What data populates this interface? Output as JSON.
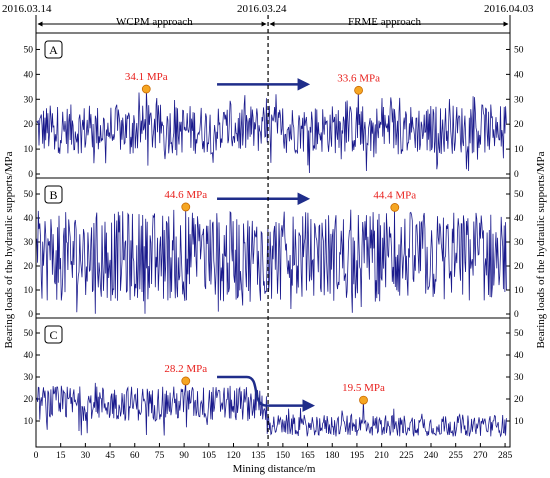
{
  "chart_data": {
    "type": "line",
    "title": "",
    "top_dates": [
      "2016.03.14",
      "2016.03.24",
      "2016.04.03"
    ],
    "approach_labels": [
      "WCPM approach",
      "FRME approach"
    ],
    "xlabel": "Mining distance/m",
    "ylabel": "Bearing loads of the hydraulic supports/MPa",
    "xlim": [
      0,
      288
    ],
    "x_ticks": [
      0,
      15,
      30,
      45,
      60,
      75,
      90,
      105,
      120,
      135,
      150,
      165,
      180,
      195,
      210,
      225,
      240,
      255,
      270,
      285
    ],
    "divider_x": 141,
    "line_color": "#1a1a8c",
    "marker_color": "#f5a623",
    "annotation_color": "#e8201d",
    "arrow_color": "#1f2d8a",
    "panels": [
      {
        "label": "A",
        "ylim": [
          0,
          55
        ],
        "y_ticks": [
          0,
          10,
          20,
          30,
          40,
          50
        ],
        "base": 18,
        "amp": 10,
        "lo": 0,
        "hi": 33,
        "peaks": [
          {
            "x": 67,
            "y": 34.1,
            "label": "34.1 MPa"
          },
          {
            "x": 196,
            "y": 33.6,
            "label": "33.6 MPa"
          }
        ],
        "arrow": {
          "x1": 110,
          "x2": 165,
          "y": 36,
          "shape": "straight"
        }
      },
      {
        "label": "B",
        "ylim": [
          0,
          55
        ],
        "y_ticks": [
          0,
          10,
          20,
          30,
          40,
          50
        ],
        "base": 24,
        "amp": 19,
        "lo": 0,
        "hi": 44,
        "peaks": [
          {
            "x": 91,
            "y": 44.6,
            "label": "44.6 MPa"
          },
          {
            "x": 218,
            "y": 44.4,
            "label": "44.4 MPa"
          }
        ],
        "arrow": {
          "x1": 110,
          "x2": 165,
          "y": 48,
          "shape": "straight"
        }
      },
      {
        "label": "C",
        "ylim": [
          0,
          55
        ],
        "y_ticks": [
          10,
          20,
          30,
          40,
          50
        ],
        "base": 18,
        "amp": 8,
        "lo": 3,
        "hi": 28,
        "peaks": [
          {
            "x": 91,
            "y": 28.2,
            "label": "28.2 MPa"
          },
          {
            "x": 199,
            "y": 19.5,
            "label": "19.5 MPa"
          }
        ],
        "arrow": {
          "x1": 110,
          "x2": 168,
          "y1": 30,
          "y2": 17,
          "shape": "step"
        }
      }
    ]
  }
}
